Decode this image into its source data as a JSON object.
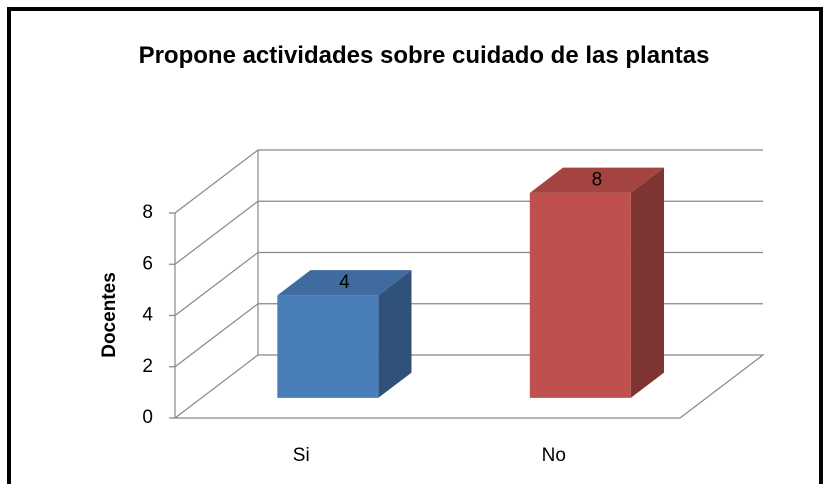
{
  "chart_data": {
    "type": "bar3d",
    "title": "Propone actividades sobre cuidado de las plantas",
    "categories": [
      "Si",
      "No"
    ],
    "values": [
      4,
      8
    ],
    "colors": [
      "#4a7ebb",
      "#c0504d"
    ],
    "ylabel": "Docentes",
    "ylim": [
      0,
      8
    ],
    "yticks": [
      0,
      2,
      4,
      6,
      8
    ],
    "grid": true
  }
}
